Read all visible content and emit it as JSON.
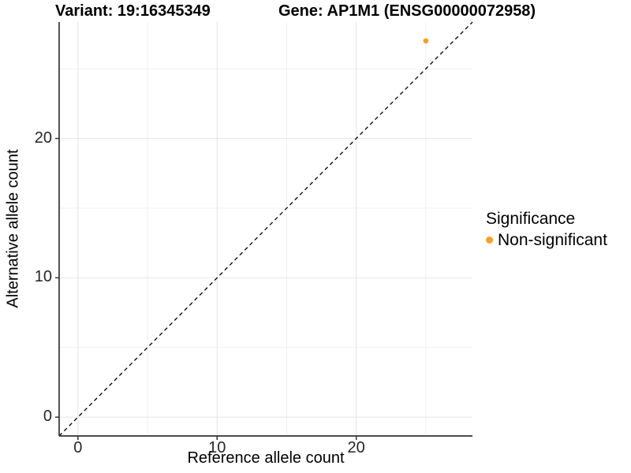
{
  "chart_data": {
    "type": "scatter",
    "titles": {
      "left": "Variant: 19:16345349",
      "right": "Gene: AP1M1 (ENSG00000072958)"
    },
    "xlabel": "Reference allele count",
    "ylabel": "Alternative allele count",
    "xlim": [
      -1.35,
      28.35
    ],
    "ylim": [
      -1.35,
      28.35
    ],
    "x_ticks": {
      "values": [
        0,
        10,
        20
      ],
      "labels": [
        "0",
        "10",
        "20"
      ]
    },
    "y_ticks": {
      "values": [
        0,
        10,
        20
      ],
      "labels": [
        "0",
        "10",
        "20"
      ]
    },
    "x_minor_gridlines": [
      5,
      15,
      25
    ],
    "y_minor_gridlines": [
      5,
      15,
      25
    ],
    "grid": "major_and_minor",
    "identity_line": {
      "slope": 1,
      "intercept": 0,
      "style": "dashed",
      "color": "#000000"
    },
    "series": [
      {
        "name": "Non-significant",
        "color": "#FAA023",
        "points": [
          {
            "x": 25,
            "y": 27
          }
        ]
      }
    ],
    "legend": {
      "title": "Significance",
      "position": "right",
      "items": [
        {
          "label": "Non-significant",
          "color": "#FAA023"
        }
      ]
    },
    "colors": {
      "grid_major": "#e4e4e4",
      "grid_minor": "#f1f1f1",
      "axis_line": "#333333",
      "tick_mark": "#333333",
      "tick_text": "#262626",
      "background": "#ffffff"
    }
  }
}
